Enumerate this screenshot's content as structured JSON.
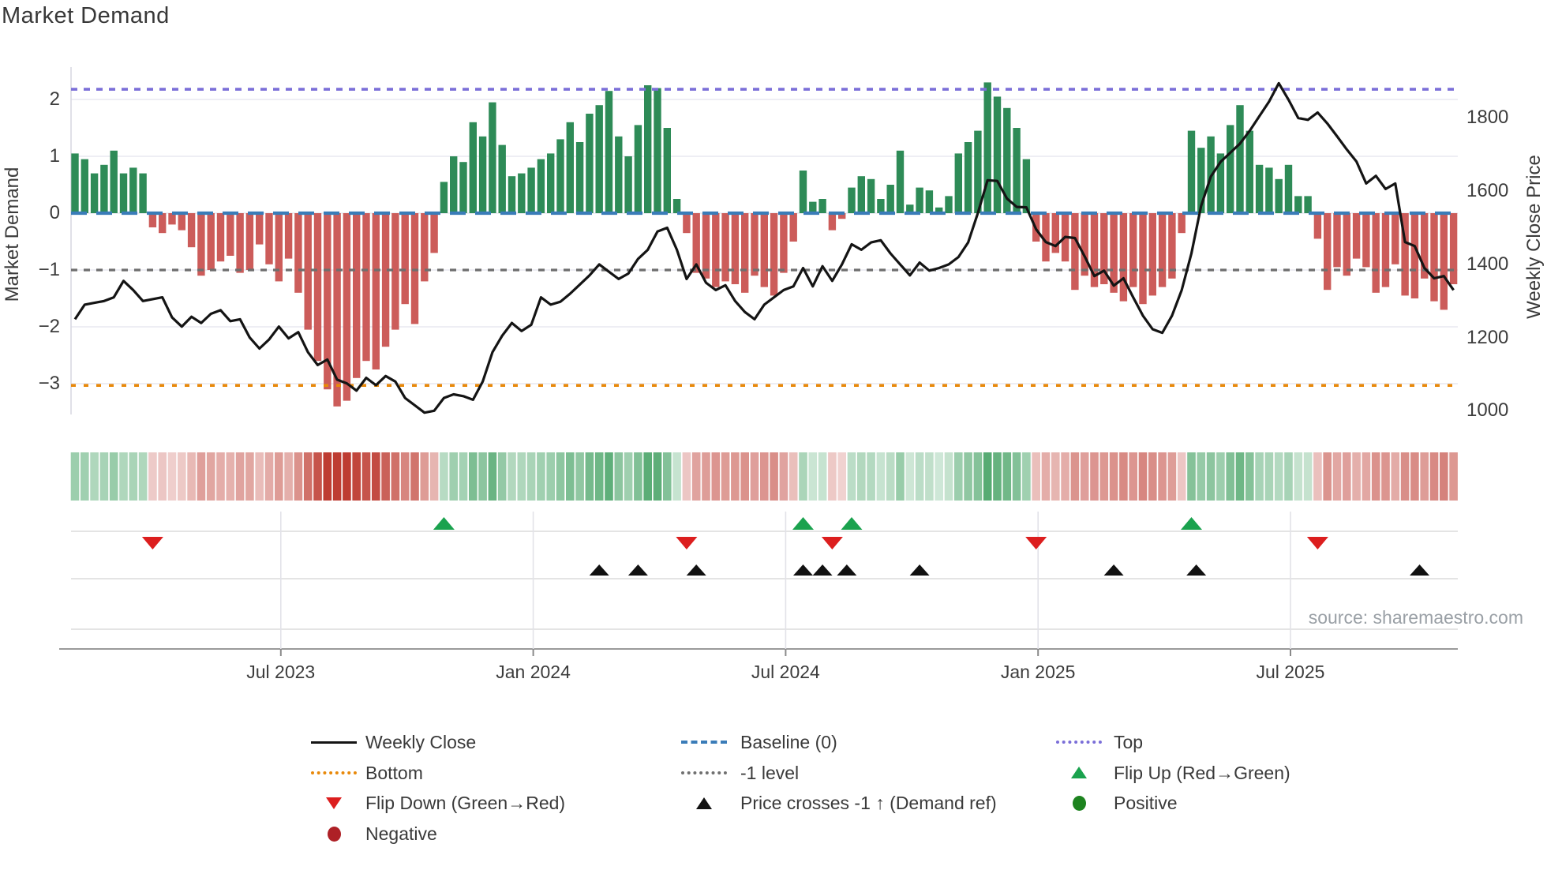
{
  "title": "Market Demand",
  "source": "source: sharemaestro.com",
  "axes": {
    "left_title": "Market Demand",
    "right_title": "Weekly Close Price",
    "demand_ticks": [
      {
        "label": "2",
        "value": 2
      },
      {
        "label": "1",
        "value": 1
      },
      {
        "label": "0",
        "value": 0
      },
      {
        "label": "−1",
        "value": -1
      },
      {
        "label": "−2",
        "value": -2
      },
      {
        "label": "−3",
        "value": -3
      }
    ],
    "price_ticks": [
      {
        "label": "1800",
        "value": 1800
      },
      {
        "label": "1600",
        "value": 1600
      },
      {
        "label": "1400",
        "value": 1400
      },
      {
        "label": "1200",
        "value": 1200
      },
      {
        "label": "1000",
        "value": 1000
      }
    ],
    "x_ticks": [
      {
        "label": "Jul 2023",
        "week": 21.2
      },
      {
        "label": "Jan 2024",
        "week": 47.2
      },
      {
        "label": "Jul 2024",
        "week": 73.2
      },
      {
        "label": "Jan 2025",
        "week": 99.2
      },
      {
        "label": "Jul 2025",
        "week": 125.2
      }
    ]
  },
  "colors": {
    "bar_positive": "#2e8b57",
    "bar_negative": "#cc5c5a",
    "price_line": "#141414",
    "top_line": "#7b6fd8",
    "baseline": "#3a7cb8",
    "neg1_line": "#6e6e6e",
    "bottom_line": "#e8890b",
    "flip_up": "#1aa24e",
    "flip_down": "#dc1e1e",
    "price_cross": "#111111",
    "positive_dot": "#1d831f",
    "negative_dot": "#ae2026",
    "heat_green": "45,150,80",
    "heat_red": "190,60,50",
    "grid": "#e8e8f0",
    "panel_grid": "#dcdcdc",
    "axis_line": "#9a9a9a"
  },
  "legend": {
    "columns": [
      {
        "x_marker": 391,
        "x_text": 463,
        "items": [
          {
            "label": "Weekly Close",
            "marker": "line-black"
          },
          {
            "label": "Bottom",
            "marker": "dotted-orange"
          },
          {
            "label": "Flip Down (Green→Red)",
            "marker": "tri-down-red"
          },
          {
            "label": "Negative",
            "marker": "circle-darkred"
          }
        ]
      },
      {
        "x_marker": 860,
        "x_text": 938,
        "items": [
          {
            "label": "Baseline (0)",
            "marker": "dashed-blue"
          },
          {
            "label": "-1 level",
            "marker": "dotted-gray"
          },
          {
            "label": "Price crosses -1 ↑ (Demand ref)",
            "marker": "tri-up-black"
          }
        ]
      },
      {
        "x_marker": 1335,
        "x_text": 1411,
        "items": [
          {
            "label": "Top",
            "marker": "dotted-purple"
          },
          {
            "label": "Flip Up (Red→Green)",
            "marker": "tri-up-green"
          },
          {
            "label": "Positive",
            "marker": "circle-green"
          }
        ]
      }
    ]
  },
  "chart_data": {
    "type": "composite",
    "x_unit": "week",
    "n_weeks": 143,
    "demand_ylim": [
      -3.6,
      2.6
    ],
    "price_ylim": [
      1000,
      1940
    ],
    "grid": "horizontal-only",
    "ref_lines": {
      "top": 2.18,
      "baseline": 0,
      "neg1": -1,
      "bottom": -3.03
    },
    "series": [
      {
        "name": "Market Demand",
        "type": "bar",
        "axis": "demand",
        "values": [
          1.05,
          0.95,
          0.7,
          0.85,
          1.1,
          0.7,
          0.8,
          0.7,
          -0.25,
          -0.35,
          -0.2,
          -0.3,
          -0.6,
          -1.1,
          -1.0,
          -0.85,
          -0.75,
          -1.05,
          -1.0,
          -0.55,
          -0.9,
          -1.2,
          -0.8,
          -1.4,
          -2.05,
          -2.6,
          -3.1,
          -3.4,
          -3.3,
          -2.9,
          -2.6,
          -2.75,
          -2.35,
          -2.05,
          -1.6,
          -1.95,
          -1.2,
          -0.7,
          0.55,
          1.0,
          0.9,
          1.6,
          1.35,
          1.95,
          1.2,
          0.65,
          0.7,
          0.8,
          0.95,
          1.05,
          1.3,
          1.6,
          1.25,
          1.75,
          1.9,
          2.15,
          1.35,
          1.0,
          1.55,
          2.25,
          2.2,
          1.5,
          0.25,
          -0.35,
          -1.05,
          -1.15,
          -1.3,
          -1.2,
          -1.25,
          -1.4,
          -1.1,
          -1.3,
          -1.45,
          -1.05,
          -0.5,
          0.75,
          0.2,
          0.25,
          -0.3,
          -0.1,
          0.45,
          0.65,
          0.6,
          0.25,
          0.5,
          1.1,
          0.15,
          0.45,
          0.4,
          0.1,
          0.3,
          1.05,
          1.25,
          1.45,
          2.3,
          2.05,
          1.85,
          1.5,
          0.95,
          -0.5,
          -0.85,
          -0.7,
          -0.85,
          -1.35,
          -1.1,
          -1.3,
          -1.25,
          -1.4,
          -1.55,
          -1.3,
          -1.6,
          -1.45,
          -1.3,
          -1.15,
          -0.35,
          1.45,
          1.15,
          1.35,
          1.05,
          1.55,
          1.9,
          1.45,
          0.85,
          0.8,
          0.6,
          0.85,
          0.3,
          0.3,
          -0.45,
          -1.35,
          -0.95,
          -1.1,
          -0.8,
          -0.95,
          -1.4,
          -1.3,
          -0.9,
          -1.45,
          -1.5,
          -1.15,
          -1.55,
          -1.7,
          -1.25
        ]
      },
      {
        "name": "Weekly Close",
        "type": "line",
        "axis": "price",
        "values": [
          1250,
          1290,
          1295,
          1300,
          1310,
          1355,
          1330,
          1300,
          1305,
          1310,
          1255,
          1230,
          1257,
          1240,
          1265,
          1275,
          1245,
          1250,
          1200,
          1170,
          1195,
          1230,
          1198,
          1215,
          1160,
          1125,
          1140,
          1085,
          1075,
          1055,
          1090,
          1070,
          1095,
          1080,
          1035,
          1015,
          995,
          1000,
          1035,
          1045,
          1040,
          1030,
          1080,
          1160,
          1205,
          1240,
          1218,
          1235,
          1310,
          1290,
          1298,
          1320,
          1345,
          1370,
          1400,
          1380,
          1360,
          1375,
          1415,
          1440,
          1490,
          1500,
          1440,
          1360,
          1400,
          1350,
          1330,
          1343,
          1300,
          1270,
          1250,
          1290,
          1310,
          1330,
          1340,
          1390,
          1340,
          1395,
          1355,
          1400,
          1455,
          1440,
          1460,
          1466,
          1430,
          1400,
          1370,
          1405,
          1383,
          1390,
          1400,
          1420,
          1460,
          1540,
          1630,
          1628,
          1580,
          1557,
          1556,
          1496,
          1461,
          1450,
          1475,
          1472,
          1422,
          1368,
          1383,
          1342,
          1362,
          1310,
          1260,
          1223,
          1213,
          1260,
          1330,
          1430,
          1560,
          1640,
          1680,
          1705,
          1730,
          1765,
          1805,
          1845,
          1895,
          1850,
          1800,
          1795,
          1815,
          1785,
          1750,
          1714,
          1681,
          1621,
          1642,
          1606,
          1621,
          1461,
          1450,
          1390,
          1362,
          1368,
          1330
        ]
      }
    ],
    "heatmap_from_bars": true,
    "markers": {
      "flip_up_weeks": [
        38,
        75,
        80,
        115
      ],
      "flip_down_weeks": [
        8,
        63,
        78,
        99,
        128
      ],
      "price_cross_weeks": [
        54,
        58,
        64,
        75,
        77,
        79.5,
        87,
        107,
        115.5,
        138.5
      ]
    }
  }
}
